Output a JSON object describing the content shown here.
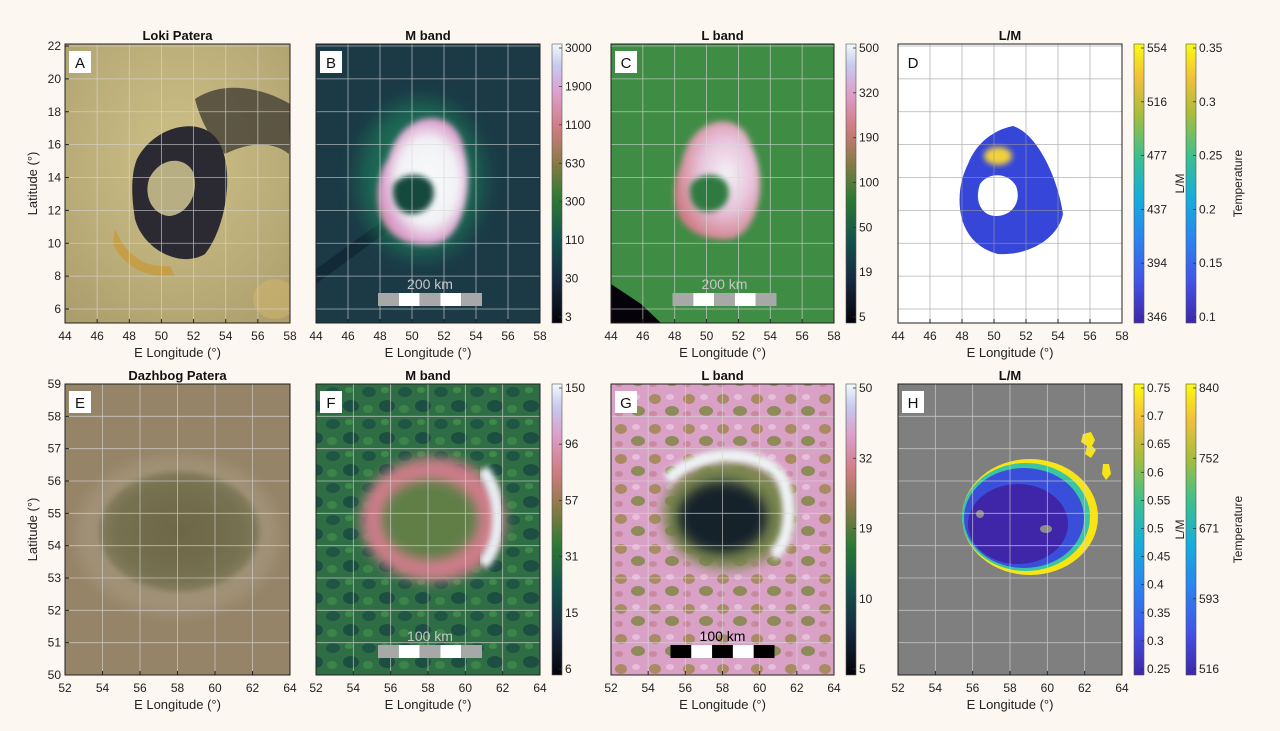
{
  "figure": {
    "panels": [
      {
        "letter": "A",
        "title": "Loki Patera",
        "kind": "visible-loki",
        "xlabel": "E Longitude (°)",
        "ylabel": "Latitude (°)",
        "xticks": [
          "44",
          "46",
          "48",
          "50",
          "52",
          "54",
          "56",
          "58"
        ],
        "yticks": [
          "22",
          "20",
          "18",
          "16",
          "14",
          "12",
          "10",
          "8",
          "6"
        ]
      },
      {
        "letter": "B",
        "title": "M band",
        "kind": "mband-loki",
        "xlabel": "E Longitude (°)",
        "xticks": [
          "44",
          "46",
          "48",
          "50",
          "52",
          "54",
          "56",
          "58"
        ],
        "scalebar_label": "200 km",
        "colorbar": {
          "ticks": [
            "3000",
            "1900",
            "1100",
            "630",
            "300",
            "110",
            "30",
            "3"
          ]
        }
      },
      {
        "letter": "C",
        "title": "L band",
        "kind": "lband-loki",
        "xlabel": "E Longitude (°)",
        "xticks": [
          "44",
          "46",
          "48",
          "50",
          "52",
          "54",
          "56",
          "58"
        ],
        "scalebar_label": "200 km",
        "colorbar": {
          "ticks": [
            "500",
            "320",
            "190",
            "100",
            "50",
            "19",
            "5"
          ]
        }
      },
      {
        "letter": "D",
        "title": "L/M",
        "kind": "ratio-loki",
        "xlabel": "E Longitude (°)",
        "xticks": [
          "44",
          "46",
          "48",
          "50",
          "52",
          "54",
          "56",
          "58"
        ],
        "colorbar": {
          "label": "L/M",
          "ticks": [
            "554",
            "516",
            "477",
            "437",
            "394",
            "346"
          ]
        },
        "colorbar2": {
          "label": "Temperature",
          "ticks": [
            "0.35",
            "0.3",
            "0.25",
            "0.2",
            "0.15",
            "0.1"
          ]
        }
      },
      {
        "letter": "E",
        "title": "Dazhbog Patera",
        "kind": "visible-dazh",
        "xlabel": "E Longitude (°)",
        "ylabel": "Latitude (°)",
        "xticks": [
          "52",
          "54",
          "56",
          "58",
          "60",
          "62",
          "64"
        ],
        "yticks": [
          "59",
          "58",
          "57",
          "56",
          "55",
          "54",
          "53",
          "52",
          "51",
          "50"
        ]
      },
      {
        "letter": "F",
        "title": "M band",
        "kind": "mband-dazh",
        "xlabel": "E Longitude (°)",
        "xticks": [
          "52",
          "54",
          "56",
          "58",
          "60",
          "62",
          "64"
        ],
        "scalebar_label": "100 km",
        "colorbar": {
          "ticks": [
            "150",
            "96",
            "57",
            "31",
            "15",
            "6"
          ]
        }
      },
      {
        "letter": "G",
        "title": "L band",
        "kind": "lband-dazh",
        "xlabel": "E Longitude (°)",
        "xticks": [
          "52",
          "54",
          "56",
          "58",
          "60",
          "62",
          "64"
        ],
        "scalebar_label": "100 km",
        "colorbar": {
          "ticks": [
            "50",
            "32",
            "19",
            "10",
            "5"
          ]
        }
      },
      {
        "letter": "H",
        "title": "L/M",
        "kind": "ratio-dazh",
        "xlabel": "E Longitude (°)",
        "xticks": [
          "52",
          "54",
          "56",
          "58",
          "60",
          "62",
          "64"
        ],
        "colorbar": {
          "label": "L/M",
          "ticks": [
            "0.75",
            "0.7",
            "0.65",
            "0.6",
            "0.55",
            "0.5",
            "0.45",
            "0.4",
            "0.35",
            "0.3",
            "0.25"
          ]
        },
        "colorbar2": {
          "label": "Temperature",
          "ticks": [
            "840",
            "752",
            "671",
            "593",
            "516"
          ]
        }
      }
    ]
  },
  "chart_data": [
    {
      "type": "heatmap",
      "panel": "A",
      "title": "Loki Patera",
      "xlabel": "E Longitude (°)",
      "ylabel": "Latitude (°)",
      "xlim": [
        44,
        58
      ],
      "ylim": [
        5,
        22
      ]
    },
    {
      "type": "heatmap",
      "panel": "B",
      "title": "M band",
      "xlabel": "E Longitude (°)",
      "xlim": [
        44,
        58
      ],
      "ylim": [
        5,
        22
      ],
      "colorbar_ticks": [
        3000,
        1900,
        1100,
        630,
        300,
        110,
        30,
        3
      ],
      "scale_bar": "200 km"
    },
    {
      "type": "heatmap",
      "panel": "C",
      "title": "L band",
      "xlabel": "E Longitude (°)",
      "xlim": [
        44,
        58
      ],
      "ylim": [
        5,
        22
      ],
      "colorbar_ticks": [
        500,
        320,
        190,
        100,
        50,
        19,
        5
      ],
      "scale_bar": "200 km"
    },
    {
      "type": "heatmap",
      "panel": "D",
      "title": "L/M",
      "xlabel": "E Longitude (°)",
      "xlim": [
        44,
        58
      ],
      "ylim": [
        5,
        22
      ],
      "colorbar_ticks": [
        554,
        516,
        477,
        437,
        394,
        346
      ],
      "colorbar2_ticks": [
        0.35,
        0.3,
        0.25,
        0.2,
        0.15,
        0.1
      ]
    },
    {
      "type": "heatmap",
      "panel": "E",
      "title": "Dazhbog Patera",
      "xlabel": "E Longitude (°)",
      "ylabel": "Latitude (°)",
      "xlim": [
        52,
        64
      ],
      "ylim": [
        50,
        59
      ]
    },
    {
      "type": "heatmap",
      "panel": "F",
      "title": "M band",
      "xlabel": "E Longitude (°)",
      "xlim": [
        52,
        64
      ],
      "ylim": [
        50,
        59
      ],
      "colorbar_ticks": [
        150,
        96,
        57,
        31,
        15,
        6
      ],
      "scale_bar": "100 km"
    },
    {
      "type": "heatmap",
      "panel": "G",
      "title": "L band",
      "xlabel": "E Longitude (°)",
      "xlim": [
        52,
        64
      ],
      "ylim": [
        50,
        59
      ],
      "colorbar_ticks": [
        50,
        32,
        19,
        10,
        5
      ],
      "scale_bar": "100 km"
    },
    {
      "type": "heatmap",
      "panel": "H",
      "title": "L/M",
      "xlabel": "E Longitude (°)",
      "xlim": [
        52,
        64
      ],
      "ylim": [
        50,
        59
      ],
      "colorbar_ticks": [
        0.75,
        0.7,
        0.65,
        0.6,
        0.55,
        0.5,
        0.45,
        0.4,
        0.35,
        0.3,
        0.25
      ],
      "colorbar2_ticks": [
        840,
        752,
        671,
        593,
        516
      ]
    }
  ]
}
